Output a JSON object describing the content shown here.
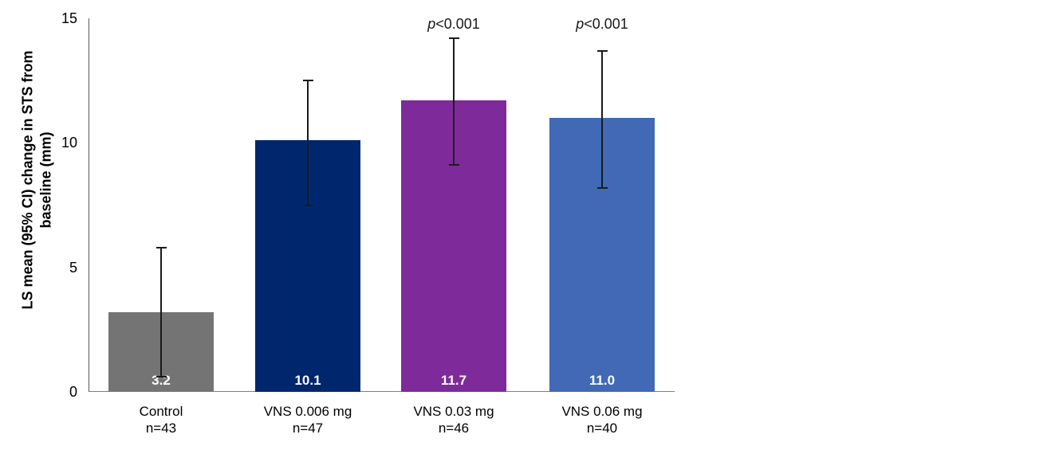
{
  "chart_data": {
    "type": "bar",
    "ylabel": "LS mean (95% CI) change in STS from baseline (mm)",
    "ylabel_lines": [
      "LS mean (95% CI) change in STS from",
      "baseline (mm)"
    ],
    "xlabel": "",
    "ylim": [
      0,
      15
    ],
    "yticks": [
      "0",
      "5",
      "10",
      "15"
    ],
    "grid": false,
    "legend": null,
    "error_bar_color": "#1a1a1a",
    "categories": [
      "Control",
      "VNS 0.006 mg",
      "VNS 0.03 mg",
      "VNS 0.06 mg"
    ],
    "bars": [
      {
        "label_line1": "Control",
        "label_line2": "n=43",
        "value": 3.2,
        "value_label": "3.2",
        "ci_low": 0.6,
        "ci_high": 5.8,
        "color": "#747474",
        "p_annotation": null
      },
      {
        "label_line1": "VNS 0.006 mg",
        "label_line2": "n=47",
        "value": 10.1,
        "value_label": "10.1",
        "ci_low": 7.5,
        "ci_high": 12.5,
        "color": "#00276e",
        "p_annotation": null
      },
      {
        "label_line1": "VNS 0.03 mg",
        "label_line2": "n=46",
        "value": 11.7,
        "value_label": "11.7",
        "ci_low": 9.1,
        "ci_high": 14.2,
        "color": "#7f2a9a",
        "p_annotation": "p<0.001"
      },
      {
        "label_line1": "VNS 0.06 mg",
        "label_line2": "n=40",
        "value": 11.0,
        "value_label": "11.0",
        "ci_low": 8.2,
        "ci_high": 13.7,
        "color": "#4169b5",
        "p_annotation": "p<0.001"
      }
    ]
  }
}
